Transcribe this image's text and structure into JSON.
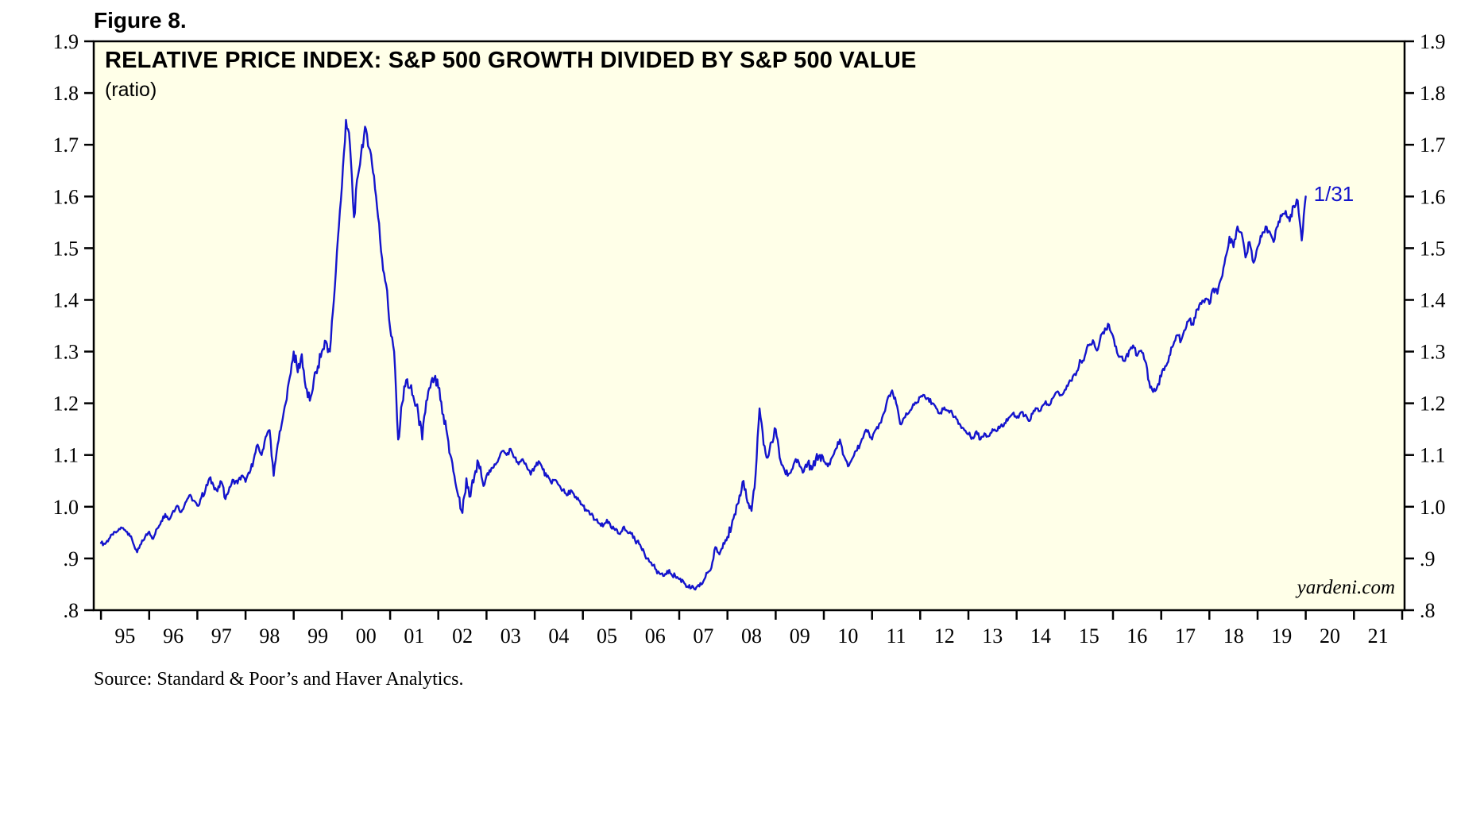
{
  "figure_label": "Figure 8.",
  "title": "RELATIVE PRICE INDEX: S&P 500 GROWTH DIVIDED BY S&P 500 VALUE",
  "subtitle": "(ratio)",
  "watermark": "yardeni.com",
  "annotation": "1/31",
  "source": "Source: Standard & Poor’s and Haver Analytics.",
  "colors": {
    "line": "#1414CC",
    "plot_bg": "#FFFFE8",
    "axis": "#000000",
    "annotation": "#1414CC"
  },
  "chart_data": {
    "type": "line",
    "title": "RELATIVE PRICE INDEX: S&P 500 GROWTH DIVIDED BY S&P 500 VALUE",
    "xlabel": "",
    "ylabel": "(ratio)",
    "grid": false,
    "legend": "none",
    "ylim": [
      0.8,
      1.9
    ],
    "yticks": [
      ".8",
      ".9",
      "1.0",
      "1.1",
      "1.2",
      "1.3",
      "1.4",
      "1.5",
      "1.6",
      "1.7",
      "1.8",
      "1.9"
    ],
    "ytick_values": [
      0.8,
      0.9,
      1.0,
      1.1,
      1.2,
      1.3,
      1.4,
      1.5,
      1.6,
      1.7,
      1.8,
      1.9
    ],
    "xlim": [
      1994.85,
      2022.05
    ],
    "xtick_labels": [
      "95",
      "96",
      "97",
      "98",
      "99",
      "00",
      "01",
      "02",
      "03",
      "04",
      "05",
      "06",
      "07",
      "08",
      "09",
      "10",
      "11",
      "12",
      "13",
      "14",
      "15",
      "16",
      "17",
      "18",
      "19",
      "20",
      "21"
    ],
    "last_point_label": "1/31",
    "series": [
      {
        "name": "S&P 500 Growth divided by S&P 500 Value",
        "frequency": "monthly",
        "start_year": 1995,
        "values": [
          0.93,
          0.928,
          0.938,
          0.946,
          0.952,
          0.96,
          0.955,
          0.948,
          0.93,
          0.912,
          0.928,
          0.942,
          0.952,
          0.938,
          0.958,
          0.972,
          0.986,
          0.975,
          0.992,
          1.002,
          0.99,
          1.008,
          1.022,
          1.012,
          1.002,
          1.018,
          1.032,
          1.055,
          1.042,
          1.03,
          1.048,
          1.015,
          1.038,
          1.052,
          1.045,
          1.06,
          1.048,
          1.065,
          1.09,
          1.12,
          1.1,
          1.135,
          1.148,
          1.06,
          1.12,
          1.16,
          1.2,
          1.25,
          1.3,
          1.26,
          1.295,
          1.23,
          1.205,
          1.245,
          1.272,
          1.3,
          1.32,
          1.3,
          1.4,
          1.52,
          1.62,
          1.748,
          1.7,
          1.56,
          1.64,
          1.7,
          1.73,
          1.69,
          1.64,
          1.56,
          1.48,
          1.43,
          1.345,
          1.3,
          1.13,
          1.2,
          1.245,
          1.23,
          1.205,
          1.18,
          1.13,
          1.205,
          1.23,
          1.248,
          1.23,
          1.18,
          1.15,
          1.1,
          1.06,
          1.02,
          0.988,
          1.055,
          1.02,
          1.06,
          1.085,
          1.05,
          1.06,
          1.068,
          1.082,
          1.092,
          1.108,
          1.1,
          1.112,
          1.095,
          1.082,
          1.092,
          1.078,
          1.062,
          1.078,
          1.088,
          1.072,
          1.058,
          1.048,
          1.052,
          1.042,
          1.032,
          1.022,
          1.032,
          1.018,
          1.012,
          1.002,
          0.992,
          0.985,
          0.975,
          0.968,
          0.962,
          0.975,
          0.96,
          0.955,
          0.948,
          0.96,
          0.952,
          0.948,
          0.935,
          0.928,
          0.918,
          0.9,
          0.892,
          0.88,
          0.872,
          0.866,
          0.876,
          0.87,
          0.866,
          0.86,
          0.856,
          0.846,
          0.843,
          0.84,
          0.846,
          0.856,
          0.872,
          0.882,
          0.922,
          0.908,
          0.93,
          0.942,
          0.962,
          0.985,
          1.022,
          1.05,
          1.008,
          0.992,
          1.062,
          1.19,
          1.12,
          1.095,
          1.125,
          1.15,
          1.095,
          1.075,
          1.06,
          1.072,
          1.092,
          1.078,
          1.068,
          1.085,
          1.072,
          1.092,
          1.1,
          1.088,
          1.078,
          1.095,
          1.112,
          1.13,
          1.098,
          1.078,
          1.092,
          1.108,
          1.12,
          1.14,
          1.148,
          1.13,
          1.15,
          1.162,
          1.182,
          1.212,
          1.225,
          1.2,
          1.16,
          1.172,
          1.18,
          1.192,
          1.2,
          1.212,
          1.216,
          1.21,
          1.2,
          1.19,
          1.182,
          1.192,
          1.186,
          1.18,
          1.17,
          1.158,
          1.148,
          1.14,
          1.134,
          1.146,
          1.13,
          1.142,
          1.136,
          1.15,
          1.146,
          1.156,
          1.162,
          1.172,
          1.18,
          1.172,
          1.182,
          1.176,
          1.166,
          1.18,
          1.19,
          1.186,
          1.2,
          1.196,
          1.21,
          1.222,
          1.216,
          1.226,
          1.24,
          1.252,
          1.262,
          1.282,
          1.292,
          1.312,
          1.322,
          1.302,
          1.332,
          1.345,
          1.352,
          1.33,
          1.298,
          1.29,
          1.282,
          1.302,
          1.312,
          1.292,
          1.302,
          1.282,
          1.242,
          1.222,
          1.232,
          1.252,
          1.272,
          1.292,
          1.312,
          1.332,
          1.322,
          1.342,
          1.362,
          1.352,
          1.382,
          1.392,
          1.402,
          1.392,
          1.422,
          1.412,
          1.442,
          1.482,
          1.522,
          1.502,
          1.542,
          1.53,
          1.482,
          1.512,
          1.472,
          1.502,
          1.522,
          1.542,
          1.532,
          1.512,
          1.542,
          1.562,
          1.572,
          1.552,
          1.582,
          1.592,
          1.515,
          1.6
        ]
      }
    ]
  }
}
